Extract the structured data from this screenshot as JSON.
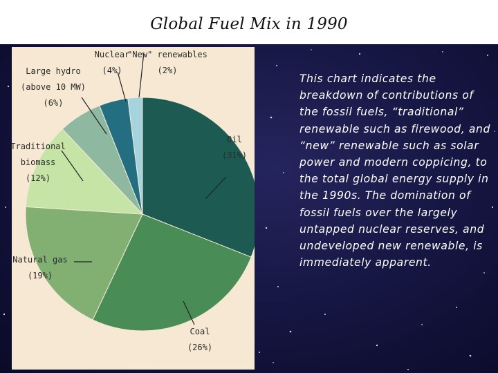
{
  "slide": {
    "title": "Global Fuel Mix in 1990",
    "body_text": "This chart indicates the breakdown of contributions of the fossil fuels, “traditional” renewable such as firewood, and “new” renewable such as solar power and modern coppicing, to the total global energy supply in the 1990s. The domination of fossil fuels over the largely untapped nuclear reserves, and undeveloped new renewable, is immediately apparent."
  },
  "chart_data": {
    "type": "pie",
    "title": "",
    "start_angle_deg": 0,
    "direction": "clockwise",
    "slices": [
      {
        "key": "oil",
        "label_lines": [
          "Oil",
          "(31%)"
        ],
        "value": 31,
        "color": "#1c5a52"
      },
      {
        "key": "coal",
        "label_lines": [
          "Coal",
          "(26%)"
        ],
        "value": 26,
        "color": "#4a8c56"
      },
      {
        "key": "natural-gas",
        "label_lines": [
          "Natural gas",
          "(19%)"
        ],
        "value": 19,
        "color": "#82b073"
      },
      {
        "key": "traditional-biomass",
        "label_lines": [
          "Traditional",
          "biomass",
          "(12%)"
        ],
        "value": 12,
        "color": "#c6e4a6"
      },
      {
        "key": "large-hydro",
        "label_lines": [
          "Large hydro",
          "(above 10 MW)",
          "(6%)"
        ],
        "value": 6,
        "color": "#8fb8a0"
      },
      {
        "key": "nuclear",
        "label_lines": [
          "Nuclear",
          "(4%)"
        ],
        "value": 4,
        "color": "#246e82"
      },
      {
        "key": "new-renewables",
        "label_lines": [
          "\"New\" renewables",
          "(2%)"
        ],
        "value": 2,
        "color": "#a6d4de"
      }
    ]
  }
}
